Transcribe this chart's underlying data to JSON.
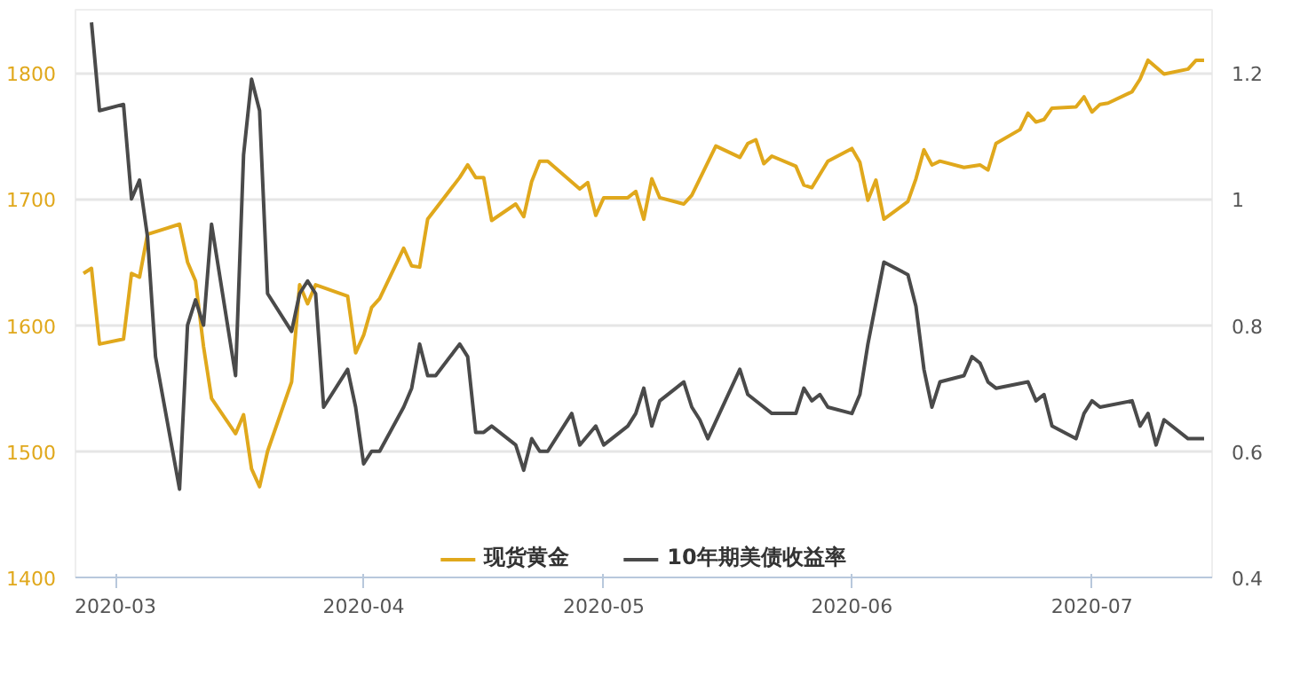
{
  "chart_data": {
    "type": "line",
    "xlim": [
      "2020-02-25",
      "2020-07-16"
    ],
    "xticks": [
      {
        "value": "2020-03-01",
        "label": "2020-03"
      },
      {
        "value": "2020-04-01",
        "label": "2020-04"
      },
      {
        "value": "2020-05-01",
        "label": "2020-05"
      },
      {
        "value": "2020-06-01",
        "label": "2020-06"
      },
      {
        "value": "2020-07-01",
        "label": "2020-07"
      }
    ],
    "ylim": [
      1400,
      1850
    ],
    "yticks": [
      1400,
      1500,
      1600,
      1700,
      1800
    ],
    "y2lim": [
      0.4,
      1.3
    ],
    "y2ticks": [
      0.4,
      0.6,
      0.8,
      1,
      1.2
    ],
    "grid": "y",
    "legend": "bottom",
    "series": [
      {
        "name": "现货黄金",
        "color": "#e0a81c",
        "x": [
          "2020-02-26",
          "2020-02-27",
          "2020-02-28",
          "2020-03-02",
          "2020-03-03",
          "2020-03-04",
          "2020-03-05",
          "2020-03-09",
          "2020-03-10",
          "2020-03-11",
          "2020-03-12",
          "2020-03-13",
          "2020-03-16",
          "2020-03-17",
          "2020-03-18",
          "2020-03-19",
          "2020-03-20",
          "2020-03-23",
          "2020-03-24",
          "2020-03-25",
          "2020-03-26",
          "2020-03-30",
          "2020-03-31",
          "2020-04-01",
          "2020-04-02",
          "2020-04-03",
          "2020-04-06",
          "2020-04-07",
          "2020-04-08",
          "2020-04-09",
          "2020-04-13",
          "2020-04-14",
          "2020-04-15",
          "2020-04-16",
          "2020-04-17",
          "2020-04-20",
          "2020-04-21",
          "2020-04-22",
          "2020-04-23",
          "2020-04-24",
          "2020-04-28",
          "2020-04-29",
          "2020-04-30",
          "2020-05-01",
          "2020-05-04",
          "2020-05-05",
          "2020-05-06",
          "2020-05-07",
          "2020-05-08",
          "2020-05-11",
          "2020-05-12",
          "2020-05-15",
          "2020-05-18",
          "2020-05-19",
          "2020-05-20",
          "2020-05-21",
          "2020-05-22",
          "2020-05-25",
          "2020-05-26",
          "2020-05-27",
          "2020-05-29",
          "2020-06-01",
          "2020-06-02",
          "2020-06-03",
          "2020-06-04",
          "2020-06-05",
          "2020-06-08",
          "2020-06-09",
          "2020-06-10",
          "2020-06-11",
          "2020-06-12",
          "2020-06-15",
          "2020-06-17",
          "2020-06-18",
          "2020-06-19",
          "2020-06-22",
          "2020-06-23",
          "2020-06-24",
          "2020-06-25",
          "2020-06-26",
          "2020-06-29",
          "2020-06-30",
          "2020-07-01",
          "2020-07-02",
          "2020-07-03",
          "2020-07-06",
          "2020-07-07",
          "2020-07-08",
          "2020-07-10",
          "2020-07-13",
          "2020-07-14",
          "2020-07-15"
        ],
        "values": [
          1641,
          1645,
          1585,
          1589,
          1641,
          1638,
          1672,
          1680,
          1650,
          1635,
          1583,
          1542,
          1514,
          1529,
          1486,
          1472,
          1500,
          1555,
          1632,
          1617,
          1632,
          1623,
          1578,
          1592,
          1614,
          1621,
          1661,
          1647,
          1646,
          1684,
          1717,
          1727,
          1717,
          1717,
          1683,
          1696,
          1686,
          1714,
          1730,
          1730,
          1708,
          1713,
          1687,
          1701,
          1701,
          1706,
          1684,
          1716,
          1701,
          1696,
          1703,
          1742,
          1733,
          1744,
          1747,
          1728,
          1734,
          1726,
          1711,
          1709,
          1730,
          1740,
          1729,
          1699,
          1715,
          1684,
          1698,
          1716,
          1739,
          1727,
          1730,
          1725,
          1727,
          1723,
          1744,
          1755,
          1768,
          1761,
          1763,
          1772,
          1773,
          1781,
          1769,
          1775,
          1776,
          1785,
          1795,
          1810,
          1799,
          1803,
          1810,
          1810
        ]
      },
      {
        "name": "10年期美债收益率",
        "color": "#4a4a4a",
        "axis": "y2",
        "x": [
          "2020-02-27",
          "2020-02-28",
          "2020-03-02",
          "2020-03-03",
          "2020-03-04",
          "2020-03-05",
          "2020-03-06",
          "2020-03-09",
          "2020-03-10",
          "2020-03-11",
          "2020-03-12",
          "2020-03-13",
          "2020-03-16",
          "2020-03-17",
          "2020-03-18",
          "2020-03-19",
          "2020-03-20",
          "2020-03-23",
          "2020-03-24",
          "2020-03-25",
          "2020-03-26",
          "2020-03-27",
          "2020-03-30",
          "2020-03-31",
          "2020-04-01",
          "2020-04-02",
          "2020-04-03",
          "2020-04-06",
          "2020-04-07",
          "2020-04-08",
          "2020-04-09",
          "2020-04-10",
          "2020-04-13",
          "2020-04-14",
          "2020-04-15",
          "2020-04-16",
          "2020-04-17",
          "2020-04-20",
          "2020-04-21",
          "2020-04-22",
          "2020-04-23",
          "2020-04-24",
          "2020-04-27",
          "2020-04-28",
          "2020-04-30",
          "2020-05-01",
          "2020-05-04",
          "2020-05-05",
          "2020-05-06",
          "2020-05-07",
          "2020-05-08",
          "2020-05-11",
          "2020-05-12",
          "2020-05-13",
          "2020-05-14",
          "2020-05-18",
          "2020-05-19",
          "2020-05-21",
          "2020-05-22",
          "2020-05-25",
          "2020-05-26",
          "2020-05-27",
          "2020-05-28",
          "2020-05-29",
          "2020-06-01",
          "2020-06-02",
          "2020-06-03",
          "2020-06-05",
          "2020-06-08",
          "2020-06-09",
          "2020-06-10",
          "2020-06-11",
          "2020-06-12",
          "2020-06-15",
          "2020-06-16",
          "2020-06-17",
          "2020-06-18",
          "2020-06-19",
          "2020-06-23",
          "2020-06-24",
          "2020-06-25",
          "2020-06-26",
          "2020-06-29",
          "2020-06-30",
          "2020-07-01",
          "2020-07-02",
          "2020-07-06",
          "2020-07-07",
          "2020-07-08",
          "2020-07-09",
          "2020-07-10",
          "2020-07-13",
          "2020-07-14",
          "2020-07-15"
        ],
        "values": [
          1.28,
          1.14,
          1.15,
          1.0,
          1.03,
          0.94,
          0.75,
          0.54,
          0.8,
          0.84,
          0.8,
          0.96,
          0.72,
          1.07,
          1.19,
          1.14,
          0.85,
          0.79,
          0.85,
          0.87,
          0.85,
          0.67,
          0.73,
          0.67,
          0.58,
          0.6,
          0.6,
          0.67,
          0.7,
          0.77,
          0.72,
          0.72,
          0.77,
          0.75,
          0.63,
          0.63,
          0.64,
          0.61,
          0.57,
          0.62,
          0.6,
          0.6,
          0.66,
          0.61,
          0.64,
          0.61,
          0.64,
          0.66,
          0.7,
          0.64,
          0.68,
          0.71,
          0.67,
          0.65,
          0.62,
          0.73,
          0.69,
          0.67,
          0.66,
          0.66,
          0.7,
          0.68,
          0.69,
          0.67,
          0.66,
          0.69,
          0.77,
          0.9,
          0.88,
          0.83,
          0.73,
          0.67,
          0.71,
          0.72,
          0.75,
          0.74,
          0.71,
          0.7,
          0.71,
          0.68,
          0.69,
          0.64,
          0.62,
          0.66,
          0.68,
          0.67,
          0.68,
          0.64,
          0.66,
          0.61,
          0.65,
          0.62,
          0.62,
          0.62
        ]
      }
    ]
  }
}
